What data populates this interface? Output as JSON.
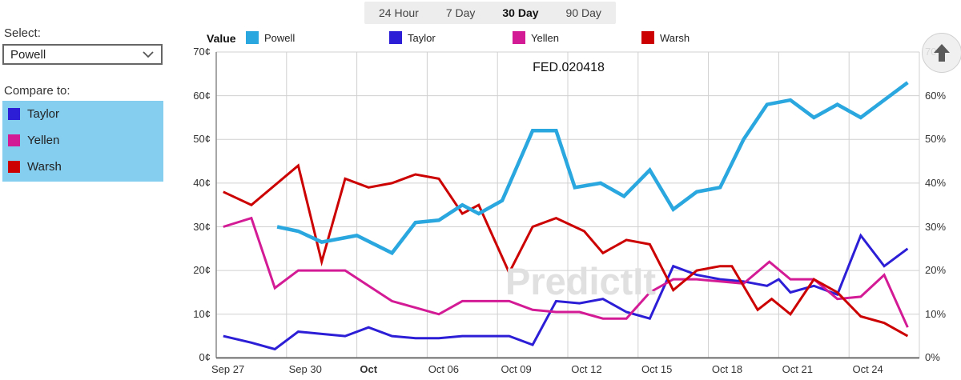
{
  "tabs": {
    "items": [
      {
        "label": "24 Hour",
        "active": false
      },
      {
        "label": "7 Day",
        "active": false
      },
      {
        "label": "30 Day",
        "active": true
      },
      {
        "label": "90 Day",
        "active": false
      }
    ]
  },
  "sidebar": {
    "select_label": "Select:",
    "selected_value": "Powell",
    "compare_label": "Compare to:",
    "highlight_color": "#85cef0",
    "compare_items": [
      {
        "label": "Taylor",
        "color": "#2c1ed6"
      },
      {
        "label": "Yellen",
        "color": "#d41b96"
      },
      {
        "label": "Warsh",
        "color": "#cc0000"
      }
    ]
  },
  "legend": {
    "value_label": "Value",
    "items": [
      {
        "label": "Powell",
        "color": "#2aa7de"
      },
      {
        "label": "Taylor",
        "color": "#2c1ed6"
      },
      {
        "label": "Yellen",
        "color": "#d41b96"
      },
      {
        "label": "Warsh",
        "color": "#cc0000"
      }
    ]
  },
  "chart_data": {
    "type": "line",
    "title": "FED.020418",
    "watermark": "PredictIt",
    "x_domain_days": [
      0,
      30
    ],
    "ylim": [
      0,
      70
    ],
    "y_tick_values": [
      0,
      10,
      20,
      30,
      40,
      50,
      60,
      70
    ],
    "y_left_suffix": "¢",
    "y_right_suffix": "%",
    "grid": true,
    "x_gridline_days": [
      3,
      6,
      9,
      12,
      15,
      18,
      21,
      24,
      27,
      30
    ],
    "x_ticks": [
      {
        "label": "Sep 27",
        "day": 0.5,
        "bold": false
      },
      {
        "label": "Sep 30",
        "day": 3.8,
        "bold": false
      },
      {
        "label": "Oct",
        "day": 6.5,
        "bold": true
      },
      {
        "label": "Oct 06",
        "day": 9.7,
        "bold": false
      },
      {
        "label": "Oct 09",
        "day": 12.8,
        "bold": false
      },
      {
        "label": "Oct 12",
        "day": 15.8,
        "bold": false
      },
      {
        "label": "Oct 15",
        "day": 18.8,
        "bold": false
      },
      {
        "label": "Oct 18",
        "day": 21.8,
        "bold": false
      },
      {
        "label": "Oct 21",
        "day": 24.8,
        "bold": false
      },
      {
        "label": "Oct 24",
        "day": 27.8,
        "bold": false
      }
    ],
    "series": [
      {
        "name": "Taylor",
        "color": "#2c1ed6",
        "width": 3,
        "points": [
          [
            0.3,
            5
          ],
          [
            1.5,
            3.5
          ],
          [
            2.5,
            2
          ],
          [
            3.5,
            6
          ],
          [
            4.5,
            5.5
          ],
          [
            5.5,
            5
          ],
          [
            6.5,
            7
          ],
          [
            7.5,
            5
          ],
          [
            8.5,
            4.5
          ],
          [
            9.5,
            4.5
          ],
          [
            10.5,
            5
          ],
          [
            11.5,
            5
          ],
          [
            12.5,
            5
          ],
          [
            13.5,
            3
          ],
          [
            14.5,
            13
          ],
          [
            15.5,
            12.5
          ],
          [
            16.5,
            13.5
          ],
          [
            17.5,
            10.5
          ],
          [
            18.5,
            9
          ],
          [
            19.5,
            21
          ],
          [
            20.5,
            19
          ],
          [
            21.5,
            18
          ],
          [
            22.5,
            17.5
          ],
          [
            23.5,
            16.5
          ],
          [
            24,
            18
          ],
          [
            24.5,
            15
          ],
          [
            25.5,
            16.5
          ],
          [
            26.5,
            14.5
          ],
          [
            27.5,
            28
          ],
          [
            28.5,
            21
          ],
          [
            29.5,
            25
          ]
        ]
      },
      {
        "name": "Yellen",
        "color": "#d41b96",
        "width": 3,
        "points": [
          [
            0.3,
            30
          ],
          [
            1.5,
            32
          ],
          [
            2.5,
            16
          ],
          [
            3.5,
            20
          ],
          [
            4.5,
            20
          ],
          [
            5.5,
            20
          ],
          [
            6.5,
            16.5
          ],
          [
            7.5,
            13
          ],
          [
            8.5,
            11.5
          ],
          [
            9.5,
            10
          ],
          [
            10.5,
            13
          ],
          [
            11.5,
            13
          ],
          [
            12.5,
            13
          ],
          [
            13.5,
            11
          ],
          [
            14.5,
            10.5
          ],
          [
            15.5,
            10.5
          ],
          [
            16.5,
            9
          ],
          [
            17.5,
            9
          ],
          [
            18.5,
            15
          ],
          [
            19.5,
            18
          ],
          [
            20.5,
            18
          ],
          [
            21.5,
            17.5
          ],
          [
            22.5,
            17
          ],
          [
            23.6,
            22
          ],
          [
            24.5,
            18
          ],
          [
            25.5,
            18
          ],
          [
            26.5,
            13.5
          ],
          [
            27.5,
            14
          ],
          [
            28.5,
            19
          ],
          [
            29.5,
            7
          ]
        ]
      },
      {
        "name": "Warsh",
        "color": "#cc0000",
        "width": 3,
        "points": [
          [
            0.3,
            38
          ],
          [
            1.5,
            35
          ],
          [
            3.5,
            44
          ],
          [
            4.5,
            22
          ],
          [
            5.5,
            41
          ],
          [
            6.5,
            39
          ],
          [
            7.5,
            40
          ],
          [
            8.5,
            42
          ],
          [
            9.5,
            41
          ],
          [
            10.5,
            33
          ],
          [
            11.2,
            35
          ],
          [
            12.5,
            19.5
          ],
          [
            13.5,
            30
          ],
          [
            14.5,
            32
          ],
          [
            15.7,
            29
          ],
          [
            16.5,
            24
          ],
          [
            17.5,
            27
          ],
          [
            18.5,
            26
          ],
          [
            19.5,
            15.5
          ],
          [
            20.5,
            20
          ],
          [
            21.5,
            21
          ],
          [
            22,
            21
          ],
          [
            23.1,
            11
          ],
          [
            23.7,
            13.5
          ],
          [
            24.5,
            10
          ],
          [
            25.5,
            18
          ],
          [
            26.5,
            15
          ],
          [
            27.5,
            9.5
          ],
          [
            28.5,
            8
          ],
          [
            29.5,
            5
          ]
        ]
      },
      {
        "name": "Powell",
        "color": "#2aa7de",
        "width": 4.5,
        "points": [
          [
            2.6,
            30
          ],
          [
            3.5,
            29
          ],
          [
            4.5,
            26.5
          ],
          [
            6,
            28
          ],
          [
            7.5,
            24
          ],
          [
            8.5,
            31
          ],
          [
            9.5,
            31.5
          ],
          [
            10.5,
            35
          ],
          [
            11.2,
            33
          ],
          [
            12.2,
            36
          ],
          [
            13.5,
            52
          ],
          [
            14.5,
            52
          ],
          [
            15.3,
            39
          ],
          [
            16.4,
            40
          ],
          [
            17.4,
            37
          ],
          [
            18.5,
            43
          ],
          [
            19.5,
            34
          ],
          [
            20.5,
            38
          ],
          [
            21.5,
            39
          ],
          [
            22.5,
            50
          ],
          [
            23.5,
            58
          ],
          [
            24.5,
            59
          ],
          [
            25.5,
            55
          ],
          [
            26.5,
            58
          ],
          [
            27.5,
            55
          ],
          [
            29.5,
            63
          ]
        ]
      }
    ],
    "legend_position": "top"
  },
  "scroll_button": {
    "icon": "arrow-up"
  }
}
